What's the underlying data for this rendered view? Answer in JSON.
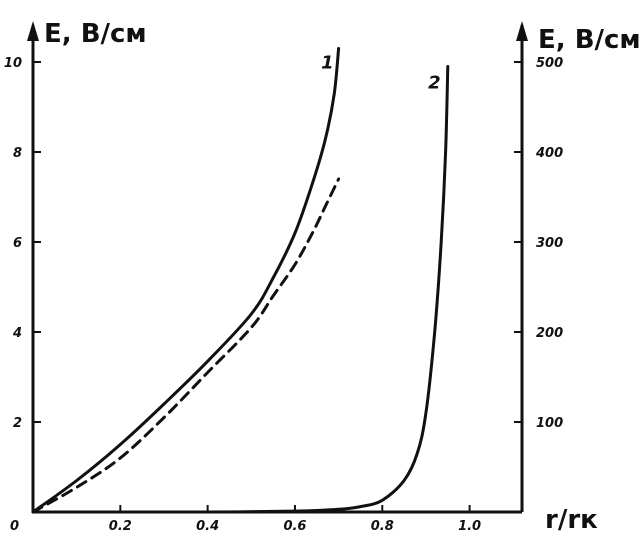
{
  "chart_data": {
    "type": "line",
    "title": "",
    "xlabel": "r/rк",
    "ylabel_left": "E, B/cм",
    "ylabel_right": "E, B/cм",
    "xlim": [
      0,
      1.0
    ],
    "ylim_left": [
      0,
      10
    ],
    "ylim_right": [
      0,
      500
    ],
    "x_ticks": [
      "0",
      "0.2",
      "0.4",
      "0.6",
      "0.8",
      "1.0"
    ],
    "y_left_ticks": [
      "2",
      "4",
      "6",
      "8",
      "10"
    ],
    "y_right_ticks": [
      "100",
      "200",
      "300",
      "400",
      "500"
    ],
    "grid": false,
    "series": [
      {
        "name": "1",
        "axis": "left",
        "style": "solid",
        "x": [
          0,
          0.1,
          0.2,
          0.3,
          0.4,
          0.5,
          0.55,
          0.6,
          0.64,
          0.67,
          0.69,
          0.7
        ],
        "y": [
          0,
          0.7,
          1.5,
          2.4,
          3.35,
          4.4,
          5.2,
          6.2,
          7.3,
          8.3,
          9.3,
          10.3
        ]
      },
      {
        "name": "",
        "axis": "left",
        "style": "dashed",
        "x": [
          0,
          0.1,
          0.2,
          0.3,
          0.4,
          0.5,
          0.55,
          0.6,
          0.64,
          0.67,
          0.7
        ],
        "y": [
          0,
          0.55,
          1.2,
          2.1,
          3.1,
          4.1,
          4.8,
          5.5,
          6.2,
          6.8,
          7.4
        ]
      },
      {
        "name": "2",
        "axis": "right",
        "style": "solid",
        "x": [
          0,
          0.2,
          0.4,
          0.6,
          0.7,
          0.75,
          0.8,
          0.85,
          0.88,
          0.9,
          0.92,
          0.935,
          0.945,
          0.95
        ],
        "y": [
          0,
          0,
          0,
          1,
          3,
          6,
          13,
          35,
          65,
          110,
          200,
          300,
          400,
          495
        ]
      }
    ],
    "curve_labels": [
      "1",
      "2"
    ]
  }
}
